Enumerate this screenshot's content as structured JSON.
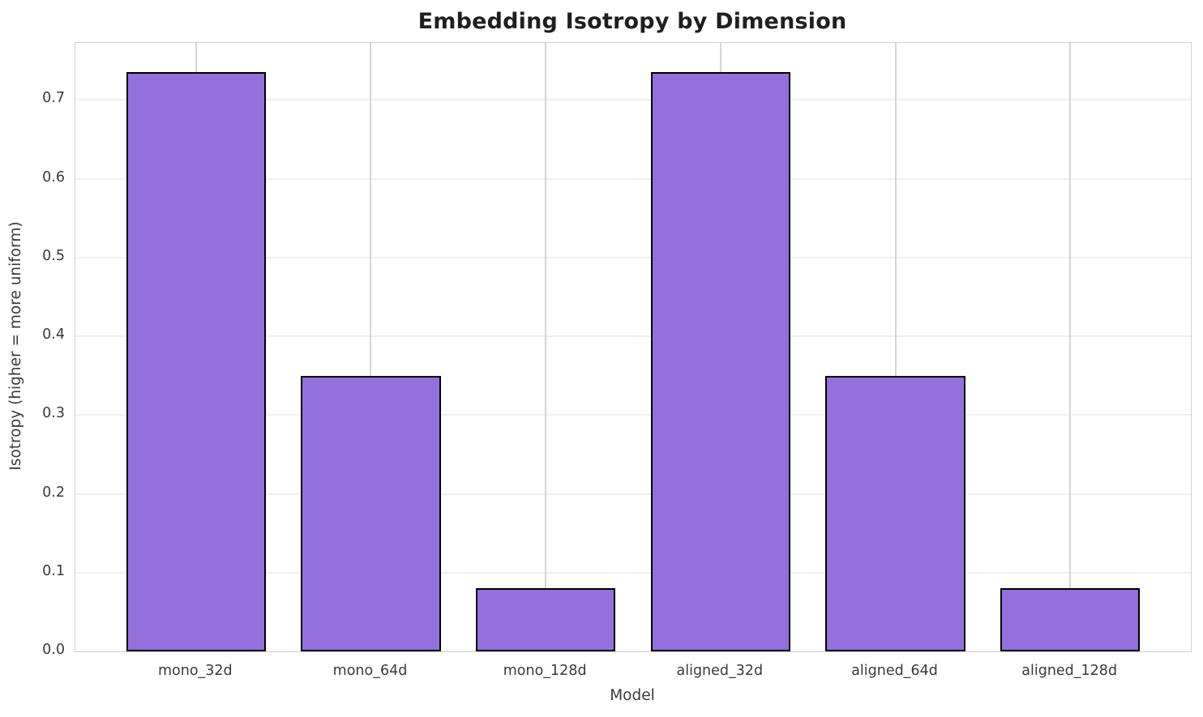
{
  "chart_data": {
    "type": "bar",
    "title": "Embedding Isotropy by Dimension",
    "xlabel": "Model",
    "ylabel": "Isotropy (higher = more uniform)",
    "categories": [
      "mono_32d",
      "mono_64d",
      "mono_128d",
      "aligned_32d",
      "aligned_64d",
      "aligned_128d"
    ],
    "values": [
      0.735,
      0.35,
      0.08,
      0.735,
      0.35,
      0.08
    ],
    "yticks": [
      0.0,
      0.1,
      0.2,
      0.3,
      0.4,
      0.5,
      0.6,
      0.7
    ],
    "ytick_labels": [
      "0.0",
      "0.1",
      "0.2",
      "0.3",
      "0.4",
      "0.5",
      "0.6",
      "0.7"
    ],
    "ylim": [
      0,
      0.7725
    ],
    "xlim": [
      -0.69,
      5.69
    ],
    "bar_width_data_units": 0.8,
    "grid": true,
    "legend": "none",
    "colors": {
      "bar_fill": "#9370DB",
      "bar_edge": "#000000",
      "grid_horizontal": "#efefef",
      "grid_vertical": "#d4d4d4",
      "spine": "#cfcfcf",
      "title_text": "#1f1f1f",
      "tick_text": "#3a3a3a"
    }
  }
}
